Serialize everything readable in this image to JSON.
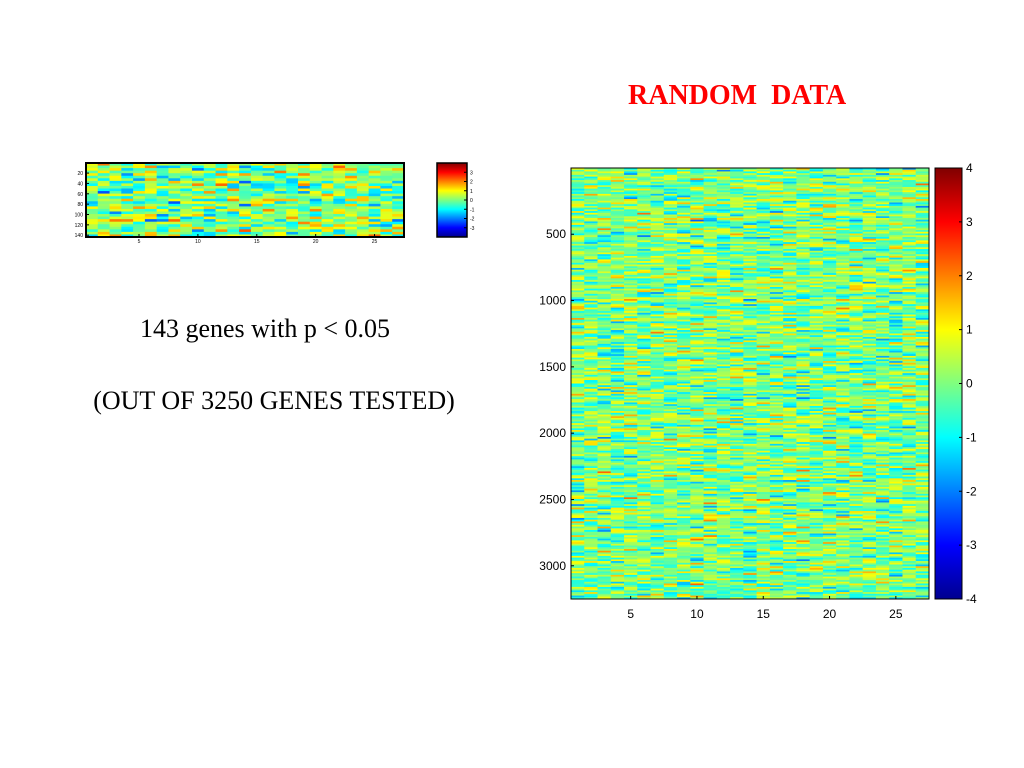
{
  "slide": {
    "title": "RANDOM  DATA",
    "result_line": "143 genes with p < 0.05",
    "tested_line": "(OUT OF 3250 GENES TESTED)"
  },
  "chart_data": [
    {
      "type": "heatmap",
      "name": "significant-genes-heatmap",
      "n_rows": 143,
      "n_cols": 27,
      "x_ticks": [
        5,
        10,
        15,
        20,
        25
      ],
      "y_ticks": [
        20,
        40,
        60,
        80,
        100,
        120,
        140
      ],
      "colorbar_ticks": [
        3,
        2,
        1,
        0,
        -1,
        -2,
        -3
      ],
      "colormap": "jet"
    },
    {
      "type": "heatmap",
      "name": "all-genes-heatmap",
      "n_rows": 3250,
      "n_cols": 27,
      "x_ticks": [
        5,
        10,
        15,
        20,
        25
      ],
      "y_ticks": [
        500,
        1000,
        1500,
        2000,
        2500,
        3000
      ],
      "colorbar_ticks": [
        4,
        3,
        2,
        1,
        0,
        -1,
        -2,
        -3,
        -4
      ],
      "clim": [
        -4,
        4
      ],
      "colormap": "jet"
    }
  ]
}
